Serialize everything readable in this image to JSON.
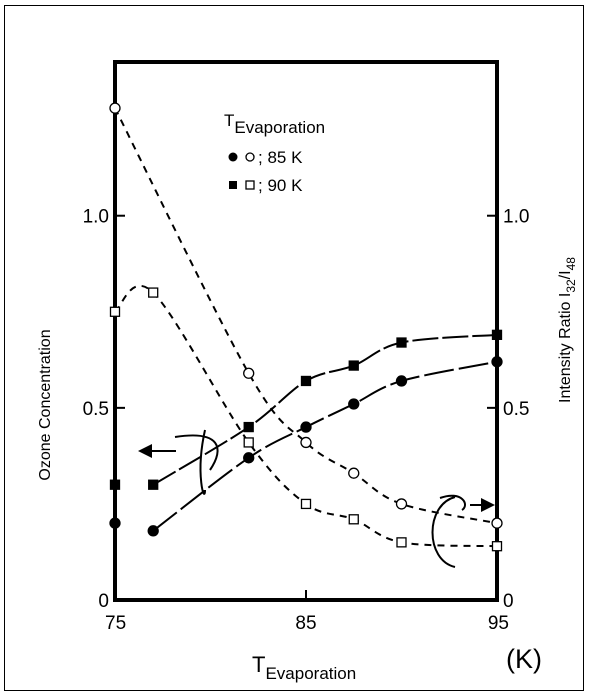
{
  "chart_data": {
    "type": "scatter",
    "xlabel": {
      "main": "T",
      "sub": "Evaporation"
    },
    "x_unit": "(K)",
    "ylabel_left": "Ozone Concentration",
    "ylabel_right": {
      "main": "Intensity Ratio I",
      "sub1": "32",
      "sep": "/I",
      "sub2": "48"
    },
    "xlim": [
      75,
      95
    ],
    "ylim": [
      0,
      1.4
    ],
    "x_ticks": [
      {
        "value": 75,
        "label": "75"
      },
      {
        "value": 85,
        "label": "85"
      },
      {
        "value": 95,
        "label": "95"
      }
    ],
    "y_ticks_left": [
      {
        "value": 0,
        "label": "0"
      },
      {
        "value": 0.5,
        "label": "0.5"
      },
      {
        "value": 1.0,
        "label": "1.0"
      }
    ],
    "y_ticks_right": [
      {
        "value": 0,
        "label": "0"
      },
      {
        "value": 0.5,
        "label": "0.5"
      },
      {
        "value": 1.0,
        "label": "1.0"
      }
    ],
    "legend": {
      "title_main": "T",
      "title_sub": "Evaporation",
      "placement": "top-center",
      "entries": [
        {
          "label": "; 85 K",
          "marker_filled": "circle",
          "marker_open": "circle"
        },
        {
          "label": "; 90 K",
          "marker_filled": "square",
          "marker_open": "square"
        }
      ]
    },
    "series": [
      {
        "marker": "circle",
        "filled": true,
        "axis": "left",
        "line": "solid",
        "x": [
          75,
          77,
          82,
          85,
          87.5,
          90,
          95
        ],
        "y": [
          0.2,
          0.18,
          0.37,
          0.45,
          0.51,
          0.57,
          0.62
        ]
      },
      {
        "marker": "square",
        "filled": true,
        "axis": "left",
        "line": "solid",
        "x": [
          75,
          77,
          82,
          85,
          87.5,
          90,
          95
        ],
        "y": [
          0.3,
          0.3,
          0.45,
          0.57,
          0.61,
          0.67,
          0.69
        ]
      },
      {
        "marker": "circle",
        "filled": false,
        "axis": "right",
        "line": "dashed",
        "x": [
          75,
          82,
          85,
          87.5,
          90,
          95
        ],
        "y": [
          1.28,
          0.59,
          0.41,
          0.33,
          0.25,
          0.2
        ]
      },
      {
        "marker": "square",
        "filled": false,
        "axis": "right",
        "line": "dashed",
        "x": [
          75,
          77,
          82,
          85,
          87.5,
          90,
          95
        ],
        "y": [
          0.75,
          0.8,
          0.41,
          0.25,
          0.21,
          0.15,
          0.14
        ]
      }
    ],
    "grid": false,
    "line_color": "#000000"
  }
}
